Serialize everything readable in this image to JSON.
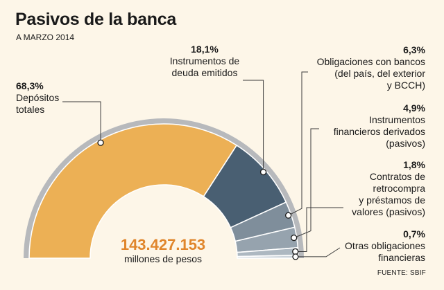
{
  "header": {
    "title": "Pasivos de la banca",
    "subtitle": "A MARZO 2014"
  },
  "total": {
    "value": "143.427.153",
    "unit": "millones de pesos"
  },
  "source": "FUENTE: SBIF",
  "colors": {
    "background": "#fdf6e8",
    "depositos": "#ecb055",
    "instrumentos_deuda": "#495f72",
    "obligaciones_bancos": "#7f8e9b",
    "derivados": "#96a3ae",
    "contratos_retrocompra": "#adb8c1",
    "otras": "#cbd3da",
    "outer_ring": "#b7b9bc",
    "accent_total": "#e0862c"
  },
  "chart_data": {
    "type": "pie",
    "subtype": "semi-donut",
    "title": "Pasivos de la banca",
    "subtitle": "A MARZO 2014",
    "unit": "%",
    "slices": [
      {
        "key": "depositos",
        "label": "Depósitos\ntotales",
        "value": 68.3,
        "value_label": "68,3%"
      },
      {
        "key": "instrumentos_deuda",
        "label": "Instrumentos de\ndeuda emitidos",
        "value": 18.1,
        "value_label": "18,1%"
      },
      {
        "key": "obligaciones_bancos",
        "label": "Obligaciones con bancos\n(del país, del exterior\ny BCCH)",
        "value": 6.3,
        "value_label": "6,3%"
      },
      {
        "key": "derivados",
        "label": "Instrumentos\nfinancieros derivados\n(pasivos)",
        "value": 4.9,
        "value_label": "4,9%"
      },
      {
        "key": "contratos_retrocompra",
        "label": "Contratos de\nretrocompra\ny préstamos de\nvalores (pasivos)",
        "value": 1.8,
        "value_label": "1,8%"
      },
      {
        "key": "otras",
        "label": "Otras obligaciones\nfinancieras",
        "value": 0.7,
        "value_label": "0,7%"
      }
    ],
    "total_label": "143.427.153",
    "total_unit": "millones de pesos"
  }
}
